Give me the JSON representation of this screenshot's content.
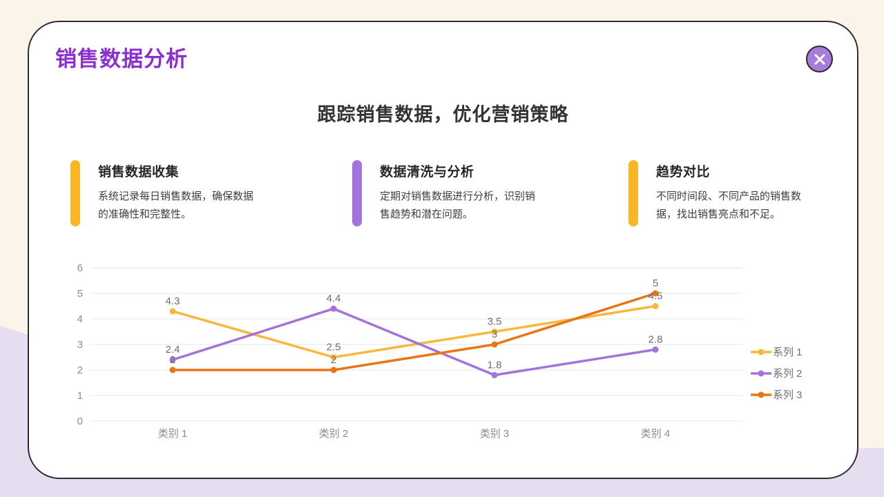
{
  "header": {
    "title": "销售数据分析",
    "subtitle": "跟踪销售数据，优化营销策略"
  },
  "features": [
    {
      "title": "销售数据收集",
      "body": "系统记录每日销售数据，确保数据的准确性和完整性。",
      "accent_color": "#F9B626"
    },
    {
      "title": "数据清洗与分析",
      "body": "定期对销售数据进行分析，识别销售趋势和潜在问题。",
      "accent_color": "#A472DB"
    },
    {
      "title": "趋势对比",
      "body": "不同时间段、不同产品的销售数据，找出销售亮点和不足。",
      "accent_color": "#F9B626"
    }
  ],
  "colors": {
    "page_background": "#FBF4E8",
    "decor_lavender": "#E6DDF1",
    "card_border": "#2F2B33",
    "title_purple": "#8C2FD0",
    "close_button_fill": "#A87CD9",
    "gridline": "#E4E4E4",
    "axis_label": "#8C8C8C",
    "data_label": "#6E6E6E"
  },
  "chart_data": {
    "type": "line",
    "categories": [
      "类别 1",
      "类别 2",
      "类别 3",
      "类别 4"
    ],
    "series": [
      {
        "name": "系列 1",
        "color": "#F6B93D",
        "values": [
          4.3,
          2.5,
          3.5,
          4.5
        ]
      },
      {
        "name": "系列 2",
        "color": "#A472DB",
        "values": [
          2.4,
          4.4,
          1.8,
          2.8
        ]
      },
      {
        "name": "系列 3",
        "color": "#EC7513",
        "values": [
          2,
          2,
          3,
          5
        ]
      }
    ],
    "ylim": [
      0,
      6
    ],
    "ytick_step": 1,
    "grid": true,
    "data_labels": true,
    "legend_position": "right"
  }
}
